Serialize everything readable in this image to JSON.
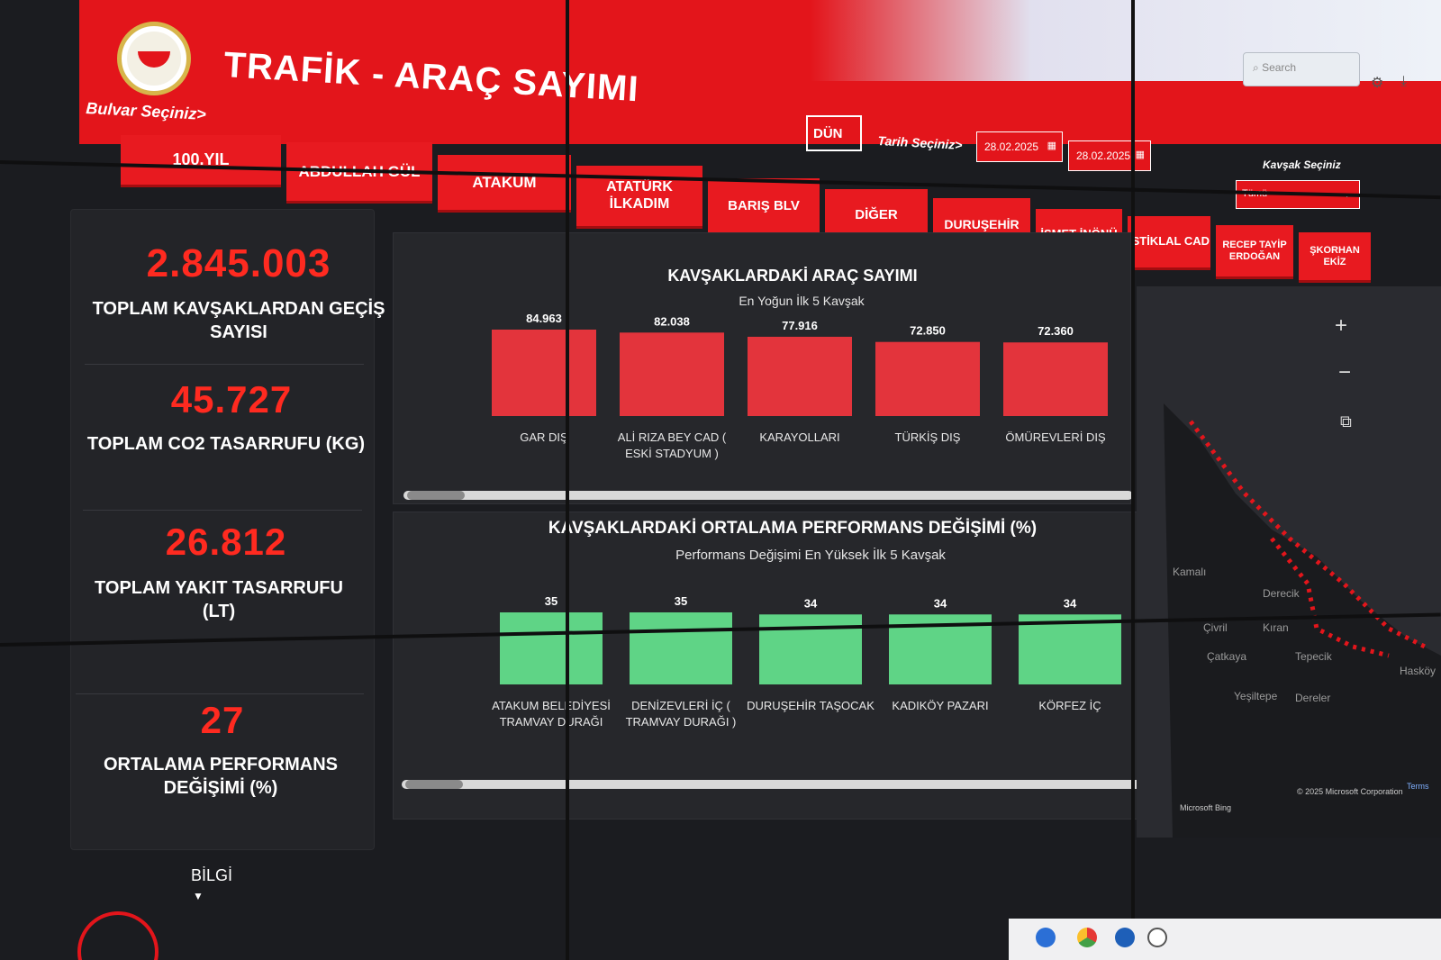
{
  "header": {
    "title": "TRAFİK - ARAÇ SAYIMI",
    "street_prompt": "Bulvar Seçiniz>",
    "today_button": "DÜN",
    "date_prompt": "Tarih Seçiniz>",
    "date_from": "28.02.2025",
    "date_to": "28.02.2025",
    "junction_prompt": "Kavşak Seçiniz",
    "junction_selected": "Tümü",
    "search_placeholder": "Search"
  },
  "streets": [
    "100.YIL",
    "ABDULLAH GÜL",
    "ATAKUM",
    "ATATÜRK İLKADIM",
    "BARIŞ BLV",
    "DİĞER",
    "DURUŞEHİR",
    "İSMET İNÖNÜ",
    "İSTİKLAL CAD",
    "RECEP TAYİP ERDOĞAN",
    "ŞKORHAN EKİZ"
  ],
  "kpis": [
    {
      "value": "2.845.003",
      "label": "TOPLAM KAVŞAKLARDAN GEÇİŞ SAYISI"
    },
    {
      "value": "45.727",
      "label": "TOPLAM CO2 TASARRUFU (KG)"
    },
    {
      "value": "26.812",
      "label": "TOPLAM YAKIT TASARRUFU (LT)"
    },
    {
      "value": "27",
      "label": "ORTALAMA PERFORMANS DEĞİŞİMİ (%)"
    }
  ],
  "chart_data": [
    {
      "type": "bar",
      "title": "KAVŞAKLARDAKİ ARAÇ SAYIMI",
      "subtitle": "En Yoğun İlk 5 Kavşak",
      "categories": [
        "GAR DIŞ",
        "ALİ RIZA BEY CAD ( ESKİ STADYUM )",
        "KARAYOLLARI",
        "TÜRKİŞ DIŞ",
        "ÖMÜREVLERİ DIŞ"
      ],
      "values": [
        84963,
        82038,
        77916,
        72850,
        72360
      ],
      "data_labels": [
        "84.963",
        "82.038",
        "77.916",
        "72.850",
        "72.360"
      ],
      "color": "#e3343c"
    },
    {
      "type": "bar",
      "title": "KAVŞAKLARDAKİ ORTALAMA PERFORMANS DEĞİŞİMİ (%)",
      "subtitle": "Performans Değişimi En Yüksek İlk 5 Kavşak",
      "categories": [
        "ATAKUM BELEDİYESİ TRAMVAY DURAĞI",
        "DENİZEVLERİ İÇ ( TRAMVAY DURAĞI )",
        "DURUŞEHİR TAŞOCAK",
        "KADIKÖY PAZARI",
        "KÖRFEZ İÇ"
      ],
      "values": [
        35,
        35,
        34,
        34,
        34
      ],
      "data_labels": [
        "35",
        "35",
        "34",
        "34",
        "34"
      ],
      "color": "#5fd486"
    }
  ],
  "map": {
    "places": [
      "Kamalı",
      "Derecik",
      "Çivril",
      "Kıran",
      "Çatkaya",
      "Tepecik",
      "Hasköy",
      "Yeşiltepe",
      "Dereler"
    ],
    "attribution_left": "Microsoft Bing",
    "attribution_right": "© 2025 Microsoft Corporation",
    "terms": "Terms"
  },
  "footer": {
    "info_label": "BİLGİ"
  },
  "colors": {
    "brand_red": "#e3151b",
    "kpi_red": "#ff2a20",
    "bar_red": "#e3343c",
    "bar_green": "#5fd486",
    "panel_bg": "#26272b"
  }
}
